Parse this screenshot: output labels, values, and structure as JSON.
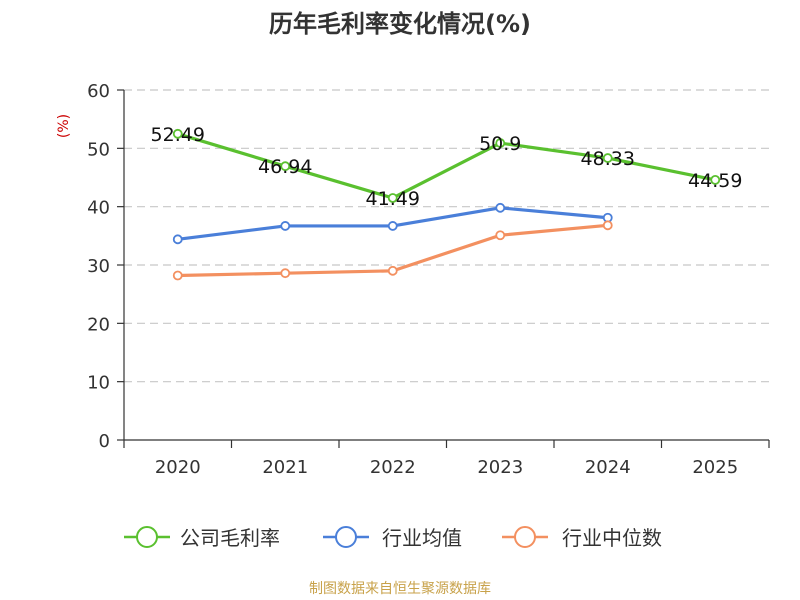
{
  "title": "历年毛利率变化情况(%)",
  "source": "制图数据来自恒生聚源数据库",
  "chart_data": {
    "type": "line",
    "title": "历年毛利率变化情况(%)",
    "xlabel": "",
    "ylabel": "(%)",
    "categories": [
      "2020",
      "2021",
      "2022",
      "2023",
      "2024",
      "2025"
    ],
    "ylim": [
      0,
      60
    ],
    "yticks": [
      0,
      10,
      20,
      30,
      40,
      50,
      60
    ],
    "grid": true,
    "legend_position": "bottom",
    "series": [
      {
        "name": "公司毛利率",
        "color": "#5ac02f",
        "values": [
          52.49,
          46.94,
          41.49,
          50.9,
          48.33,
          44.59
        ],
        "labels": [
          "52.49",
          "46.94",
          "41.49",
          "50.9",
          "48.33",
          "44.59"
        ]
      },
      {
        "name": "行业均值",
        "color": "#4a7fd9",
        "values": [
          34.4,
          36.7,
          36.7,
          39.8,
          38.1,
          null
        ]
      },
      {
        "name": "行业中位数",
        "color": "#f39060",
        "values": [
          28.2,
          28.6,
          29.0,
          35.1,
          36.8,
          null
        ]
      }
    ]
  }
}
